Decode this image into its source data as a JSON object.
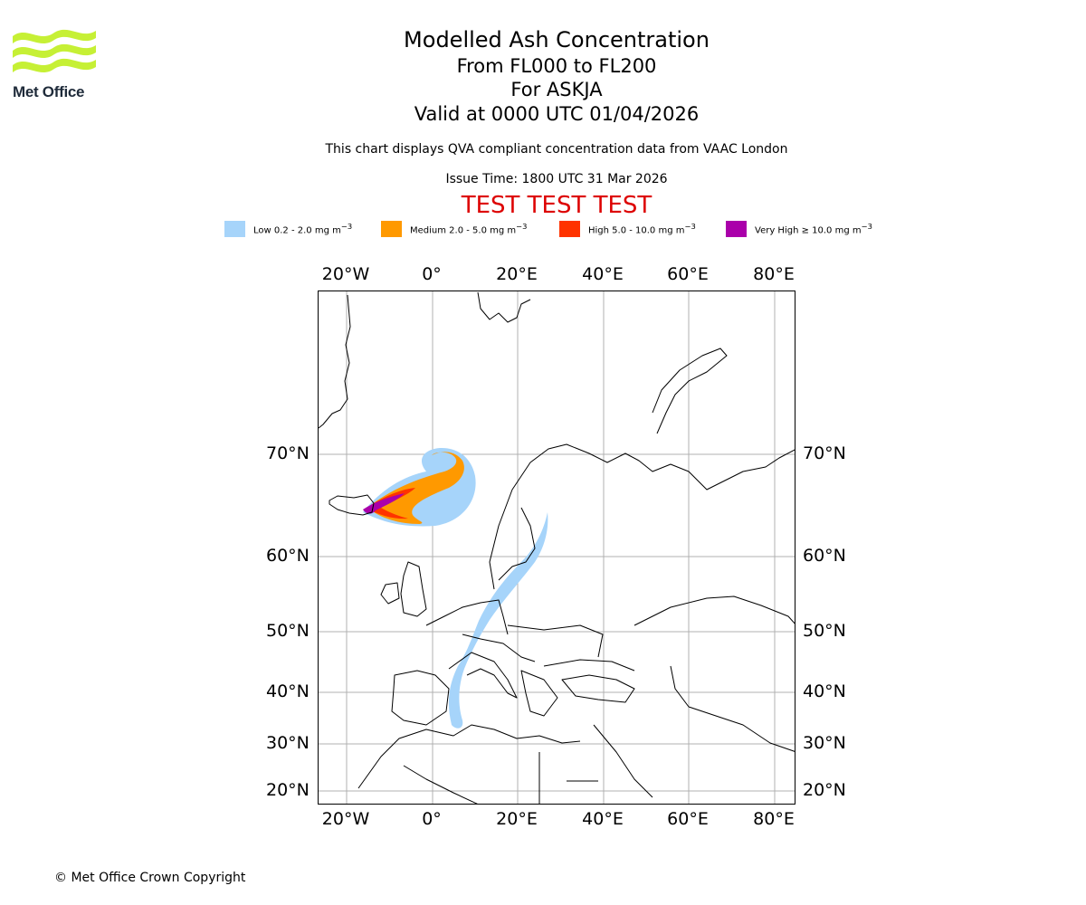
{
  "branding": {
    "logo_text": "Met Office"
  },
  "header": {
    "title": "Modelled Ash Concentration",
    "flight_levels": "From FL000 to FL200",
    "volcano": "For ASKJA",
    "valid_time": "Valid at 0000 UTC 01/04/2026",
    "description": "This chart displays QVA compliant concentration data from VAAC London",
    "issue_time": "Issue Time: 1800 UTC 31 Mar 2026",
    "test_banner": "TEST TEST TEST"
  },
  "legend": {
    "items": [
      {
        "label": "Low 0.2 - 2.0 mg m",
        "sup": "−3",
        "color": "#a6d4fa"
      },
      {
        "label": "Medium 2.0 - 5.0 mg m",
        "sup": "−3",
        "color": "#ff9900"
      },
      {
        "label": "High 5.0 - 10.0 mg m",
        "sup": "−3",
        "color": "#ff3300"
      },
      {
        "label": "Very High  ≥  10.0 mg m",
        "sup": "−3",
        "color": "#aa00aa"
      }
    ]
  },
  "map": {
    "lon_labels": [
      "20°W",
      "0°",
      "20°E",
      "40°E",
      "60°E",
      "80°E"
    ],
    "lat_labels": [
      "70°N",
      "60°N",
      "50°N",
      "40°N",
      "30°N",
      "20°N"
    ],
    "colors": {
      "coast": "#000000",
      "grid": "#b0b0b0"
    }
  },
  "footer": {
    "copyright": "© Met Office Crown Copyright"
  }
}
